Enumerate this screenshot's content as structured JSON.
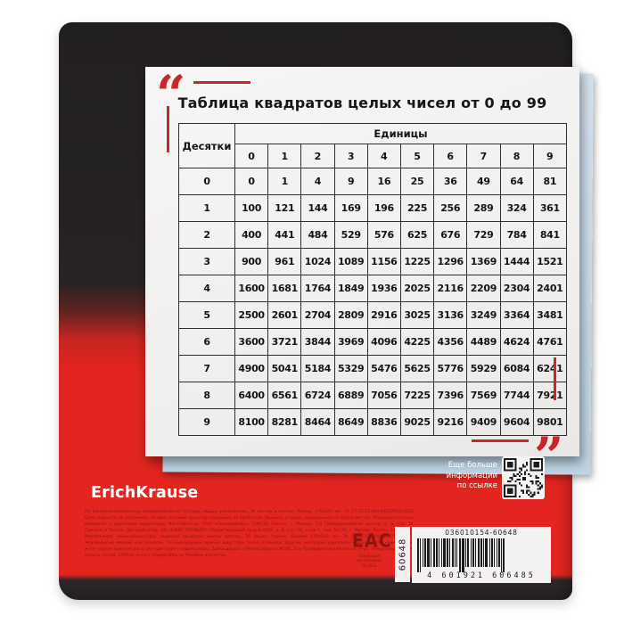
{
  "sheet": {
    "quote_open": "“",
    "quote_close": "”",
    "title": "Таблица квадратов целых чисел от 0 до 99",
    "table": {
      "corner_header": "Десятки",
      "units_header": "Единицы",
      "unit_columns": [
        "0",
        "1",
        "2",
        "3",
        "4",
        "5",
        "6",
        "7",
        "8",
        "9"
      ],
      "rows": [
        {
          "tens": "0",
          "values": [
            0,
            1,
            4,
            9,
            16,
            25,
            36,
            49,
            64,
            81
          ]
        },
        {
          "tens": "1",
          "values": [
            100,
            121,
            144,
            169,
            196,
            225,
            256,
            289,
            324,
            361
          ]
        },
        {
          "tens": "2",
          "values": [
            400,
            441,
            484,
            529,
            576,
            625,
            676,
            729,
            784,
            841
          ]
        },
        {
          "tens": "3",
          "values": [
            900,
            961,
            1024,
            1089,
            1156,
            1225,
            1296,
            1369,
            1444,
            1521
          ]
        },
        {
          "tens": "4",
          "values": [
            1600,
            1681,
            1764,
            1849,
            1936,
            2025,
            2116,
            2209,
            2304,
            2401
          ]
        },
        {
          "tens": "5",
          "values": [
            2500,
            2601,
            2704,
            2809,
            2916,
            3025,
            3136,
            3249,
            3364,
            3481
          ]
        },
        {
          "tens": "6",
          "values": [
            3600,
            3721,
            3844,
            3969,
            4096,
            4225,
            4356,
            4489,
            4624,
            4761
          ]
        },
        {
          "tens": "7",
          "values": [
            4900,
            5041,
            5184,
            5329,
            5476,
            5625,
            5776,
            5929,
            6084,
            6241
          ]
        },
        {
          "tens": "8",
          "values": [
            6400,
            6561,
            6724,
            6889,
            7056,
            7225,
            7396,
            7569,
            7744,
            7921
          ]
        },
        {
          "tens": "9",
          "values": [
            8100,
            8281,
            8464,
            8649,
            8836,
            9025,
            9216,
            9409,
            9604,
            9801
          ]
        }
      ]
    }
  },
  "cover": {
    "brand": "ErichKrause",
    "qr_label_lines": [
      "Еще больше",
      "информации",
      "по ссылке"
    ],
    "qr_icon": "qr-code",
    "eac_mark": "EAC",
    "eac_sub_lines": [
      "Продукция",
      "изготовлена",
      "10.2023"
    ],
    "fine_print": "RU Школьно-письменные принадлежности: тетрадь общая ученическая, 36 листов в клетку. Размер 170х203 мм. ТУ 17.23.13-004-66437544-2013. Срок годности не ограничен. Особых условий транспортирования не требуется. Хранить в сухих, защищённых от влаги местах. Утилизируется как бумажная и картонная макулатура. Изготовитель: ООО «Полиграфика», 109518, Россия, г. Москва, 2-й Грайвороновский проезд, д. 6, стр. 16. Сделано в России. Дистрибьютор: АО «ОФИС ПРЕМЬЕР», Проектируемый пр-д №4062, д. 6, стр. 16, этаж 1, пом. №17А, г. Москва, Россия, 115432. KZ Мектеп-жазу керек-жарақтары: оқушыға арналған жалпы дәптер, 36 парақ, торкөз. Өлшемі 170х203 мм. ТУ 17.23.13-004-66437544-2013. Жарамдылық мерзімі шектелмеген. Тасымалдаудың ерекше шарттары талап етілмейді. Құрғақ, ылғалдан қорғалған жерде сақтау қажет. Қағаз және картон макулатурасы ретінде кәдеге жаратылады. Дайындаушы: «Полиграфика» ЖШҚ, 2-ші Грайвороновский өткелі, 6-үй, 16-құрылыс, Мәскеу қаласы, Ресей, 109518. e-mail: info@grafika.ru. Ресейде жасалған.",
    "colors": {
      "cover_black": "#232021",
      "cover_red": "#e3251f",
      "accent_red": "#c9252b"
    }
  },
  "barcode": {
    "top_code": "036010154-60648",
    "ean_digits": "4 601921 606485",
    "side_number": "60648"
  }
}
